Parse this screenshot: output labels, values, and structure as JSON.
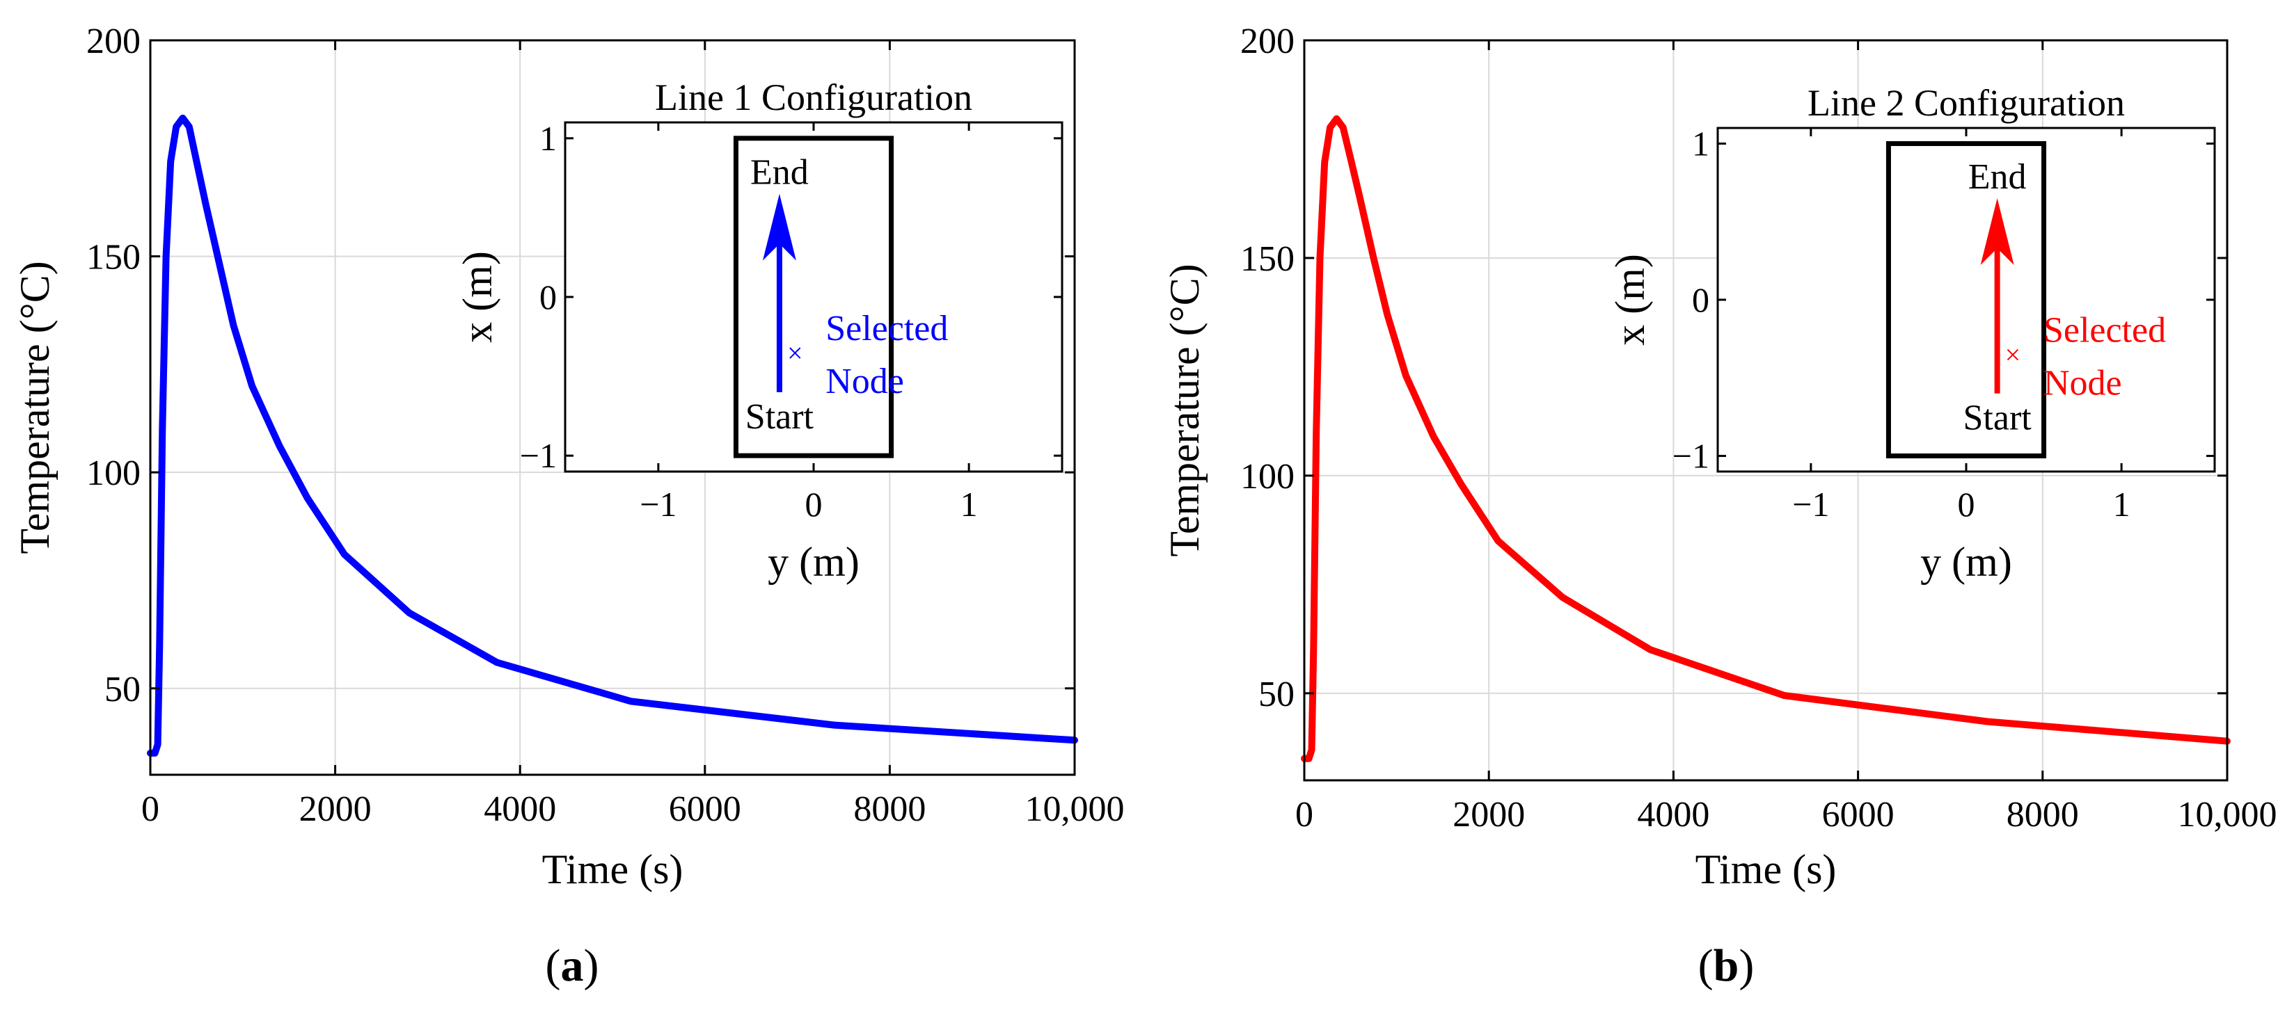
{
  "chart_data": [
    {
      "type": "line",
      "panel": "a",
      "panel_label": "(a)",
      "xlabel": "Time (s)",
      "ylabel": "Temperature (°C)",
      "xlim": [
        0,
        10000
      ],
      "ylim": [
        30,
        200
      ],
      "xticks": [
        0,
        2000,
        4000,
        6000,
        8000,
        10000
      ],
      "xtick_labels": [
        "0",
        "2000",
        "4000",
        "6000",
        "8000",
        "10,000"
      ],
      "yticks": [
        50,
        100,
        150,
        200
      ],
      "ytick_labels": [
        "50",
        "100",
        "150",
        "200"
      ],
      "grid": true,
      "series": [
        {
          "name": "Line 1 selected node",
          "color": "#0000ff",
          "x": [
            0,
            50,
            80,
            100,
            130,
            170,
            220,
            280,
            350,
            420,
            500,
            600,
            750,
            900,
            1100,
            1400,
            1700,
            2100,
            2800,
            3750,
            5200,
            7400,
            10000
          ],
          "y": [
            35,
            35,
            37,
            60,
            110,
            150,
            172,
            180,
            182,
            180,
            172,
            162,
            148,
            134,
            120,
            106,
            94,
            81,
            67.5,
            56,
            47,
            41.5,
            38
          ]
        }
      ],
      "inset": {
        "title": "Line 1 Configuration",
        "xlabel": "y (m)",
        "ylabel": "x (m)",
        "xlim": [
          -1.6,
          1.6
        ],
        "ylim": [
          -1.1,
          1.1
        ],
        "xticks": [
          -1,
          0,
          1
        ],
        "xtick_labels": [
          "−1",
          "0",
          "1"
        ],
        "yticks": [
          -1,
          0,
          1
        ],
        "ytick_labels": [
          "−1",
          "0",
          "1"
        ],
        "box": {
          "y_min": -0.5,
          "y_max": 0.5,
          "x_min": -1.0,
          "x_max": 1.0
        },
        "arrow": {
          "y": -0.22,
          "x_start": -0.6,
          "x_end": 0.65
        },
        "marker": {
          "y": -0.12,
          "x": -0.35
        },
        "start_label": "Start",
        "end_label": "End",
        "selected_label_line1": "Selected",
        "selected_label_line2": "Node",
        "color": "#0000ff"
      }
    },
    {
      "type": "line",
      "panel": "b",
      "panel_label": "(b)",
      "xlabel": "Time (s)",
      "ylabel": "Temperature (°C)",
      "xlim": [
        0,
        10000
      ],
      "ylim": [
        30,
        200
      ],
      "xticks": [
        0,
        2000,
        4000,
        6000,
        8000,
        10000
      ],
      "xtick_labels": [
        "0",
        "2000",
        "4000",
        "6000",
        "8000",
        "10,000"
      ],
      "yticks": [
        50,
        100,
        150,
        200
      ],
      "ytick_labels": [
        "50",
        "100",
        "150",
        "200"
      ],
      "grid": true,
      "series": [
        {
          "name": "Line 2 selected node",
          "color": "#ff0000",
          "x": [
            0,
            50,
            80,
            100,
            130,
            170,
            220,
            280,
            350,
            420,
            500,
            600,
            750,
            900,
            1100,
            1400,
            1700,
            2100,
            2800,
            3750,
            5200,
            7400,
            10000
          ],
          "y": [
            35,
            35,
            37,
            60,
            110,
            150,
            172,
            180,
            182,
            180,
            173,
            164,
            150,
            137,
            123,
            109,
            98,
            85,
            72,
            60,
            49.5,
            43.5,
            39
          ]
        }
      ],
      "inset": {
        "title": "Line 2 Configuration",
        "xlabel": "y (m)",
        "ylabel": "x (m)",
        "xlim": [
          -1.6,
          1.6
        ],
        "ylim": [
          -1.1,
          1.1
        ],
        "xticks": [
          -1,
          0,
          1
        ],
        "xtick_labels": [
          "−1",
          "0",
          "1"
        ],
        "yticks": [
          -1,
          0,
          1
        ],
        "ytick_labels": [
          "−1",
          "0",
          "1"
        ],
        "box": {
          "y_min": -0.5,
          "y_max": 0.5,
          "x_min": -1.0,
          "x_max": 1.0
        },
        "arrow": {
          "y": 0.2,
          "x_start": -0.6,
          "x_end": 0.65
        },
        "marker": {
          "y": 0.3,
          "x": -0.35
        },
        "start_label": "Start",
        "end_label": "End",
        "selected_label_line1": "Selected",
        "selected_label_line2": "Node",
        "color": "#ff0000"
      }
    }
  ]
}
